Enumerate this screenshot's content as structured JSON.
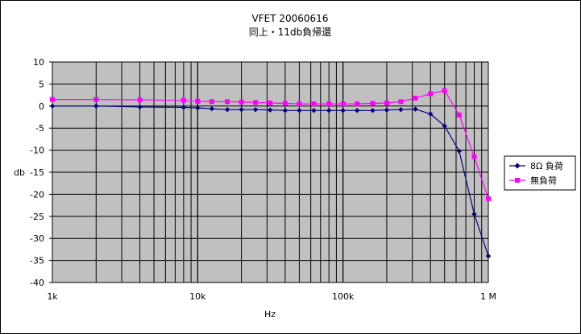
{
  "chart_data": {
    "type": "line",
    "title": "VFET  20060616",
    "subtitle": "同上・11db負帰還",
    "xlabel": "Hz",
    "ylabel": "db",
    "x_scale": "log",
    "xlim": [
      1000,
      1000000
    ],
    "ylim": [
      -40,
      10
    ],
    "y_ticks": [
      10,
      5,
      0,
      -5,
      -10,
      -15,
      -20,
      -25,
      -30,
      -35,
      -40
    ],
    "y_tick_labels": [
      "10",
      "5",
      "0",
      "-5",
      "-10",
      "-15",
      "-20",
      "-25",
      "-30",
      "-35",
      "-40"
    ],
    "x_ticks": [
      1000,
      10000,
      100000,
      1000000
    ],
    "x_tick_labels": [
      "1k",
      "10k",
      "100k",
      "1 M"
    ],
    "grid": true,
    "plot_background": "#c0c0c0",
    "legend_position": "right",
    "series": [
      {
        "name": "8Ω 負荷",
        "color": "#000080",
        "marker": "diamond",
        "x": [
          1000,
          2000,
          4000,
          8000,
          10000,
          12500,
          16000,
          20000,
          25000,
          31500,
          40000,
          50000,
          63000,
          80000,
          100000,
          125000,
          160000,
          200000,
          250000,
          315000,
          400000,
          500000,
          630000,
          800000,
          1000000
        ],
        "values": [
          0,
          0,
          -0.2,
          -0.3,
          -0.4,
          -0.6,
          -0.8,
          -0.8,
          -0.8,
          -0.9,
          -1.0,
          -1.0,
          -1.0,
          -1.0,
          -1.0,
          -1.0,
          -1.0,
          -0.9,
          -0.8,
          -0.7,
          -1.8,
          -4.5,
          -10.2,
          -24.5,
          -34.0
        ]
      },
      {
        "name": "無負荷",
        "color": "#ff00ff",
        "marker": "square",
        "x": [
          1000,
          2000,
          4000,
          8000,
          10000,
          12500,
          16000,
          20000,
          25000,
          31500,
          40000,
          50000,
          63000,
          80000,
          100000,
          125000,
          160000,
          200000,
          250000,
          315000,
          400000,
          500000,
          630000,
          800000,
          1000000
        ],
        "values": [
          1.5,
          1.5,
          1.4,
          1.3,
          1.1,
          1.0,
          1.0,
          0.9,
          0.8,
          0.7,
          0.6,
          0.5,
          0.5,
          0.5,
          0.5,
          0.5,
          0.6,
          0.7,
          1.0,
          1.8,
          2.8,
          3.5,
          -2.0,
          -11.5,
          -21.0
        ]
      }
    ]
  }
}
